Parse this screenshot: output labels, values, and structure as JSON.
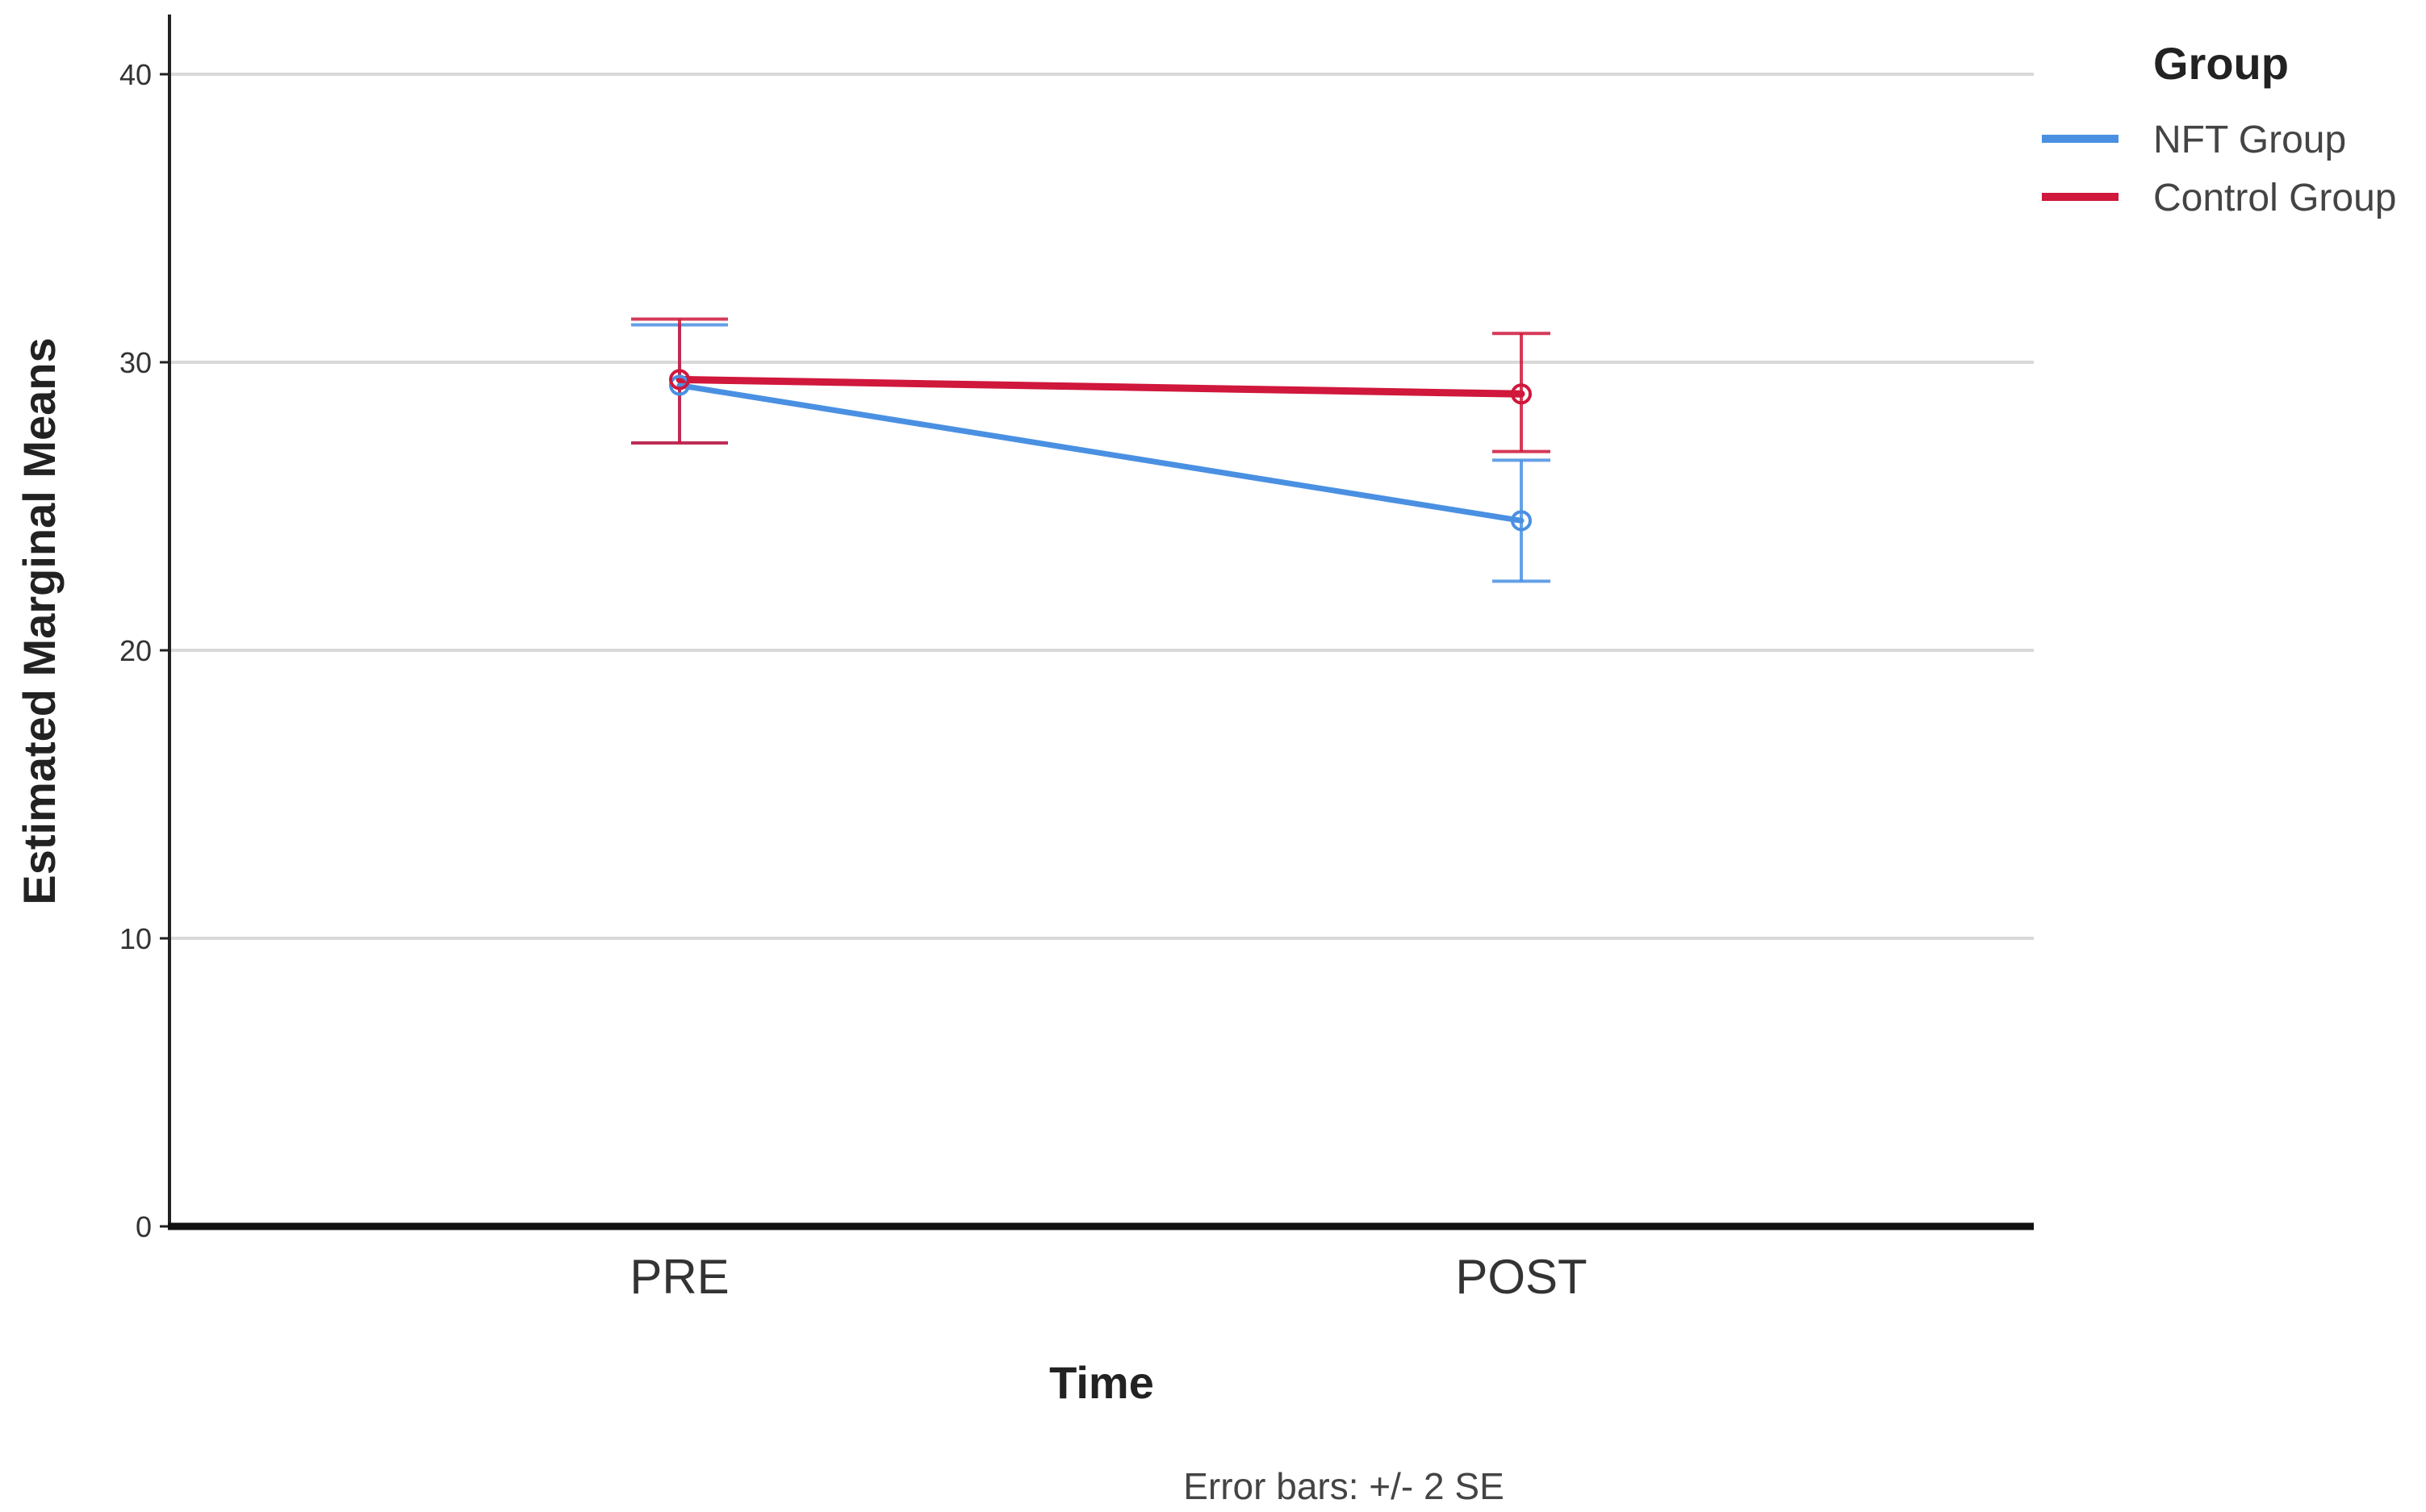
{
  "chart_data": {
    "type": "line",
    "xlabel": "Time",
    "ylabel": "Estimated Marginal Means",
    "categories": [
      "PRE",
      "POST"
    ],
    "ylim": [
      0,
      40
    ],
    "yticks": [
      "0",
      "10",
      "20",
      "30",
      "40"
    ],
    "grid": true,
    "legend": {
      "title": "Group",
      "position": "right"
    },
    "series": [
      {
        "name": "NFT Group",
        "color": "#4a90e2",
        "values": [
          29.2,
          24.5
        ],
        "error_low": [
          27.2,
          22.4
        ],
        "error_high": [
          31.3,
          26.6
        ]
      },
      {
        "name": "Control Group",
        "color": "#d0173c",
        "values": [
          29.4,
          28.9
        ],
        "error_low": [
          27.2,
          26.9
        ],
        "error_high": [
          31.5,
          31.0
        ]
      }
    ],
    "footnote": "Error bars: +/- 2 SE"
  }
}
